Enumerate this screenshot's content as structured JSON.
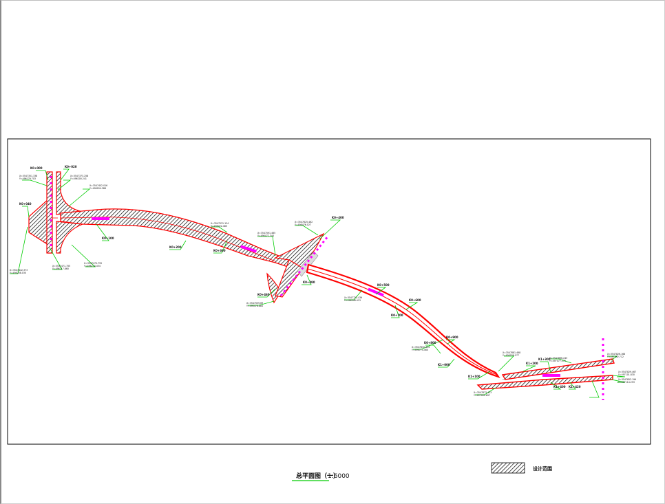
{
  "drawing": {
    "frame_color": "#000000",
    "road_edge_color": "#ff0000",
    "leader_color": "#00cc00",
    "marker_color": "#ff00ff",
    "hatch_color": "#000000"
  },
  "caption": {
    "title": "总平面图（一）",
    "scale": "1:6000"
  },
  "legend": {
    "label": "设计范围"
  },
  "callouts": {
    "c1": "K0+000",
    "c2": "K0+020",
    "c3a": "X=3547351.338",
    "c3b": "Y=496179.703",
    "c4a": "X=3547373.258",
    "c4b": "Y=496200.241",
    "c5a": "X=3547402.016",
    "c5b": "Y=496204.388",
    "c6": "K0+040",
    "c7a": "X=3547442.373",
    "c7b": "Y=496238.030",
    "c8a": "X=3547471.755",
    "c8b": "Y=496217.860",
    "c9a": "X=3547470.755",
    "c9b": "Y=496274.454",
    "c10": "K0+100",
    "c11": "K0+200",
    "c12a": "X=3547531.124",
    "c12b": "Y=496422.485",
    "c13": "K0+300",
    "c14a": "X=3547591.465",
    "c14b": "Y=496472.344",
    "c15a": "X=3547625.462",
    "c15b": "Y=496476.027",
    "c16": "K0+400",
    "c17": "K0+460",
    "c18a": "X=3547559.69",
    "c18b": "Y=496478.884",
    "c19": "K0+480",
    "c20": "K0+500",
    "c21a": "X=3547722.439",
    "c21b": "Y=496548.413",
    "c22": "K0+600",
    "c23": "K0+700",
    "c24": "K0+800",
    "c25a": "X=3547832.494",
    "c25b": "Y=496774.460",
    "c26": "K0+900",
    "c27": "K1+000",
    "c28": "K1+100",
    "c29a": "X=3547881.468",
    "c29b": "Y=496936.177",
    "c30": "K1+200",
    "c31": "K1+300",
    "c32a": "X=3547866.243",
    "c32b": "Y=497077.370",
    "c33a": "X=3547826.168",
    "c33b": "Y=497092.712",
    "c34a": "X=3547829.467",
    "c34b": "Y=497101.830",
    "c35a": "X=3547852.199",
    "c35b": "Y=497114.293",
    "c36": "K1+400",
    "c37": "K1+420",
    "c38a": "X=3547873.423",
    "c38b": "Y=497001.697"
  }
}
